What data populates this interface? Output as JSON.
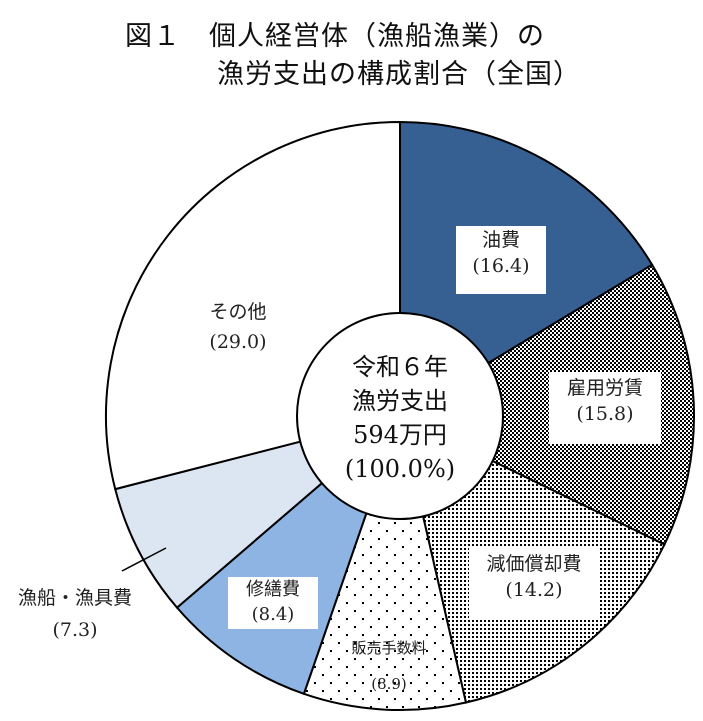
{
  "title": {
    "line1": "図１　個人経営体（漁船漁業）の",
    "line2": "漁労支出の構成割合（全国）"
  },
  "center": {
    "line1": "令和６年",
    "line2": "漁労支出",
    "line3": "594万円",
    "line4": "(100.0%)"
  },
  "chart_data": {
    "type": "pie",
    "subtype": "donut",
    "title": "図１　個人経営体（漁船漁業）の漁労支出の構成割合（全国）",
    "center_text": [
      "令和６年",
      "漁労支出",
      "594万円",
      "(100.0%)"
    ],
    "total": "594万円",
    "unit": "%",
    "start_angle": "12 o'clock",
    "direction": "clockwise",
    "categories": [
      "油費",
      "雇用労賃",
      "減価償却費",
      "販売手数料",
      "修繕費",
      "漁船・漁具費",
      "その他"
    ],
    "values": [
      16.4,
      15.8,
      14.2,
      8.9,
      8.4,
      7.3,
      29.0
    ],
    "labels": [
      "(16.4)",
      "(15.8)",
      "(14.2)",
      "(8.9)",
      "(8.4)",
      "(7.3)",
      "(29.0)"
    ],
    "fills": [
      {
        "type": "solid",
        "color": "#376092"
      },
      {
        "type": "checker",
        "color": "#000000"
      },
      {
        "type": "dense-dots",
        "color": "#000000"
      },
      {
        "type": "sparse-dots",
        "color": "#000000"
      },
      {
        "type": "solid",
        "color": "#8EB4E3"
      },
      {
        "type": "solid",
        "color": "#DCE6F2"
      },
      {
        "type": "solid",
        "color": "#FFFFFF"
      }
    ],
    "legend": "none (labels on slices)"
  }
}
